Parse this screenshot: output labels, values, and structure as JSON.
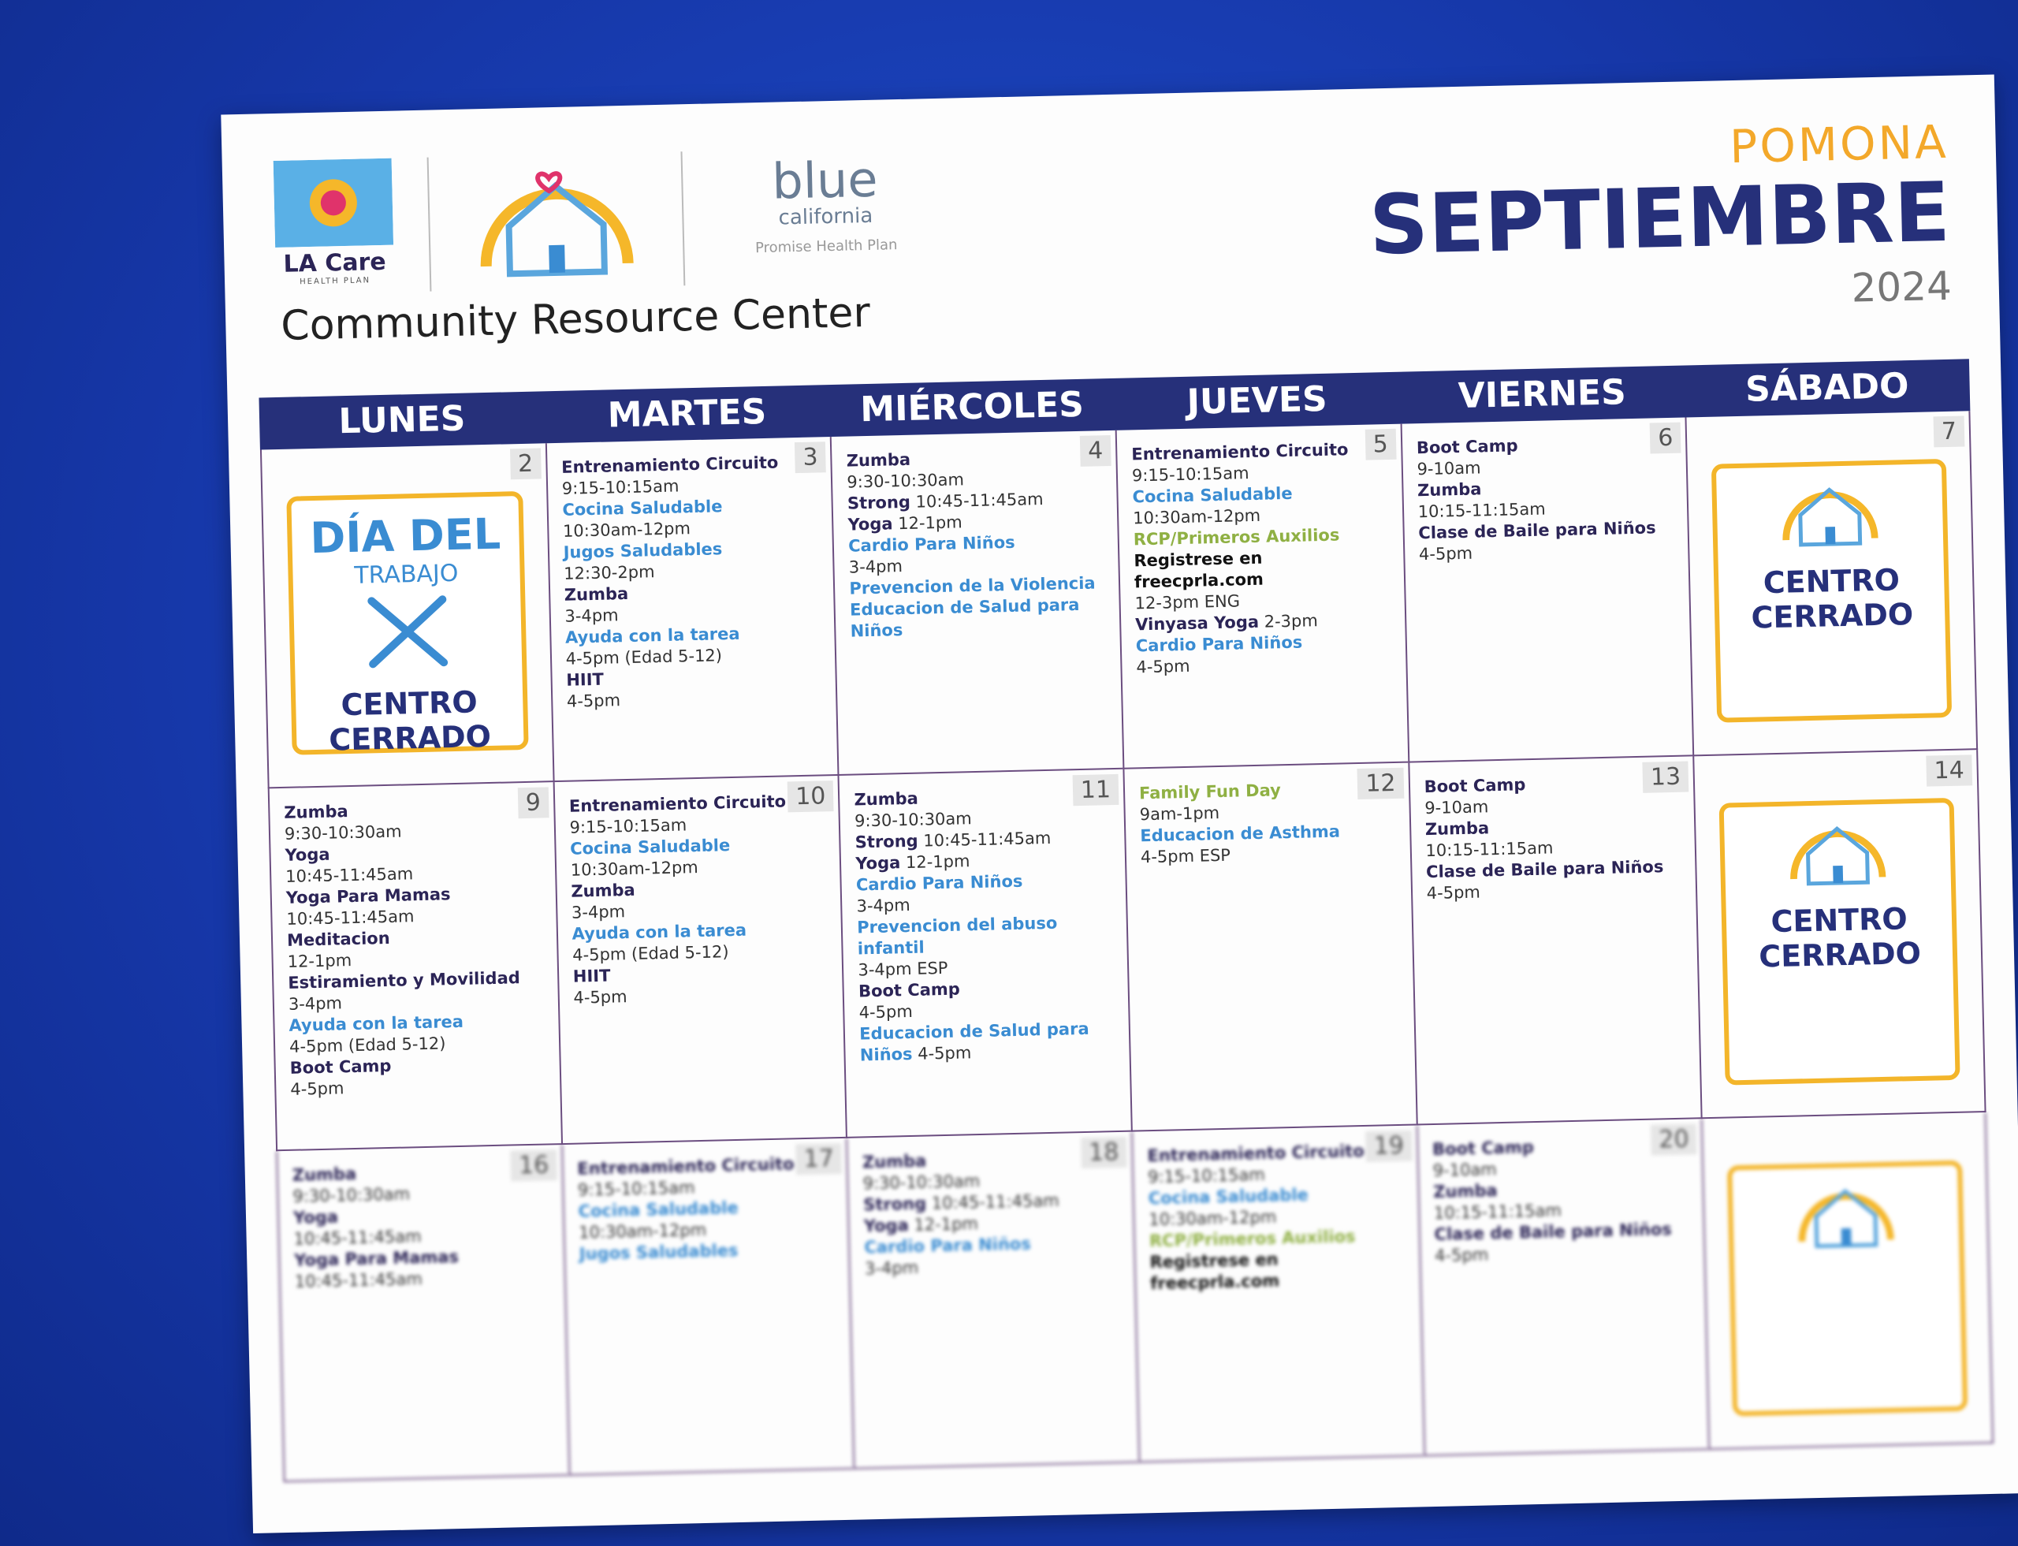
{
  "header": {
    "logo_la_care": "LA Care",
    "logo_la_care_sub": "HEALTH PLAN",
    "logo_blue": "blue",
    "logo_blue_sub": "california",
    "logo_blue_plan": "Promise Health Plan",
    "center": "Community Resource Center",
    "city": "POMONA",
    "month": "SEPTIEMBRE",
    "year": "2024"
  },
  "calendar": {
    "days": [
      "LUNES",
      "MARTES",
      "MIÉRCOLES",
      "JUEVES",
      "VIERNES",
      "SÁBADO"
    ],
    "weeks": [
      [
        {
          "day": 2,
          "closed": {
            "title": "DÍA DEL",
            "subtitle": "TRABAJO",
            "label": "CENTRO CERRADO"
          }
        },
        {
          "day": 3,
          "entries": [
            {
              "name": "Entrenamiento Circuito",
              "time": "9:15-10:15am",
              "style": "bold"
            },
            {
              "name": "Cocina Saludable",
              "time": "10:30am-12pm",
              "style": "blue"
            },
            {
              "name": "Jugos Saludables",
              "time": "12:30-2pm",
              "style": "blue"
            },
            {
              "name": "Zumba",
              "time": "3-4pm",
              "style": "bold"
            },
            {
              "name": "Ayuda con la tarea",
              "time": "4-5pm  (Edad 5-12)",
              "style": "blue"
            },
            {
              "name": "HIIT",
              "time": "4-5pm",
              "style": "bold"
            }
          ]
        },
        {
          "day": 4,
          "entries": [
            {
              "name": "Zumba",
              "time": "9:30-10:30am",
              "style": "bold"
            },
            {
              "name": "Strong",
              "time": "10:45-11:45am",
              "style": "bold",
              "inline": true
            },
            {
              "name": "Yoga",
              "time": "12-1pm",
              "style": "bold",
              "inline": true
            },
            {
              "name": "Cardio Para Niños",
              "time": "3-4pm",
              "style": "blue"
            },
            {
              "name": "Prevencion de la Violencia",
              "style": "blue"
            },
            {
              "name": "Educacion de Salud para Niños",
              "style": "blue"
            }
          ]
        },
        {
          "day": 5,
          "entries": [
            {
              "name": "Entrenamiento Circuito",
              "time": "9:15-10:15am",
              "style": "bold",
              "inline": true
            },
            {
              "name": "Cocina Saludable",
              "time": "10:30am-12pm",
              "style": "blue"
            },
            {
              "name": "RCP/Primeros Auxilios",
              "style": "green"
            },
            {
              "name": "Registrese en freecprla.com",
              "time": "12-3pm ENG",
              "style": "plain"
            },
            {
              "name": "Vinyasa Yoga",
              "time": "2-3pm",
              "style": "bold",
              "inline": true
            },
            {
              "name": "Cardio Para Niños",
              "time": "4-5pm",
              "style": "blue"
            }
          ]
        },
        {
          "day": 6,
          "entries": [
            {
              "name": "Boot Camp",
              "time": "9-10am",
              "style": "bold"
            },
            {
              "name": "Zumba",
              "time": "10:15-11:15am",
              "style": "bold"
            },
            {
              "name": "Clase de Baile para Niños",
              "time": "4-5pm",
              "style": "bold"
            }
          ]
        },
        {
          "day": 7,
          "closed": {
            "label": "CENTRO CERRADO"
          }
        }
      ],
      [
        {
          "day": 9,
          "entries": [
            {
              "name": "Zumba",
              "time": "9:30-10:30am",
              "style": "bold"
            },
            {
              "name": "Yoga",
              "time": "10:45-11:45am",
              "style": "bold"
            },
            {
              "name": "Yoga Para Mamas",
              "time": "10:45-11:45am",
              "style": "bold"
            },
            {
              "name": "Meditacion",
              "time": "12-1pm",
              "style": "bold"
            },
            {
              "name": "Estiramiento y Movilidad",
              "time": "3-4pm",
              "style": "bold"
            },
            {
              "name": "Ayuda con la tarea",
              "time": "4-5pm (Edad 5-12)",
              "style": "blue"
            },
            {
              "name": "Boot Camp",
              "time": "4-5pm",
              "style": "bold"
            }
          ]
        },
        {
          "day": 10,
          "entries": [
            {
              "name": "Entrenamiento Circuito",
              "time": "9:15-10:15am",
              "style": "bold"
            },
            {
              "name": "Cocina Saludable",
              "time": "10:30am-12pm",
              "style": "blue"
            },
            {
              "name": "Zumba",
              "time": "3-4pm",
              "style": "bold"
            },
            {
              "name": "Ayuda con la tarea",
              "time": "4-5pm (Edad 5-12)",
              "style": "blue"
            },
            {
              "name": "HIIT",
              "time": "4-5pm",
              "style": "bold"
            }
          ]
        },
        {
          "day": 11,
          "entries": [
            {
              "name": "Zumba",
              "time": "9:30-10:30am",
              "style": "bold"
            },
            {
              "name": "Strong",
              "time": "10:45-11:45am",
              "style": "bold",
              "inline": true
            },
            {
              "name": "Yoga",
              "time": "12-1pm",
              "style": "bold",
              "inline": true
            },
            {
              "name": "Cardio Para Niños",
              "time": "3-4pm",
              "style": "blue"
            },
            {
              "name": "Prevencion del abuso infantil",
              "time": "3-4pm ESP",
              "style": "blue"
            },
            {
              "name": "Boot Camp",
              "time": "4-5pm",
              "style": "bold"
            },
            {
              "name": "Educacion de Salud para Niños",
              "time": "4-5pm",
              "style": "blue",
              "inline": true
            }
          ]
        },
        {
          "day": 12,
          "entries": [
            {
              "name": "Family Fun Day",
              "time": "9am-1pm",
              "style": "green"
            },
            {
              "name": "Educacion de Asthma",
              "time": "4-5pm ESP",
              "style": "blue"
            }
          ]
        },
        {
          "day": 13,
          "entries": [
            {
              "name": "Boot Camp",
              "time": "9-10am",
              "style": "bold"
            },
            {
              "name": "Zumba",
              "time": "10:15-11:15am",
              "style": "bold"
            },
            {
              "name": "Clase de Baile para Niños",
              "time": "4-5pm",
              "style": "bold"
            }
          ]
        },
        {
          "day": 14,
          "closed": {
            "label": "CENTRO CERRADO"
          }
        }
      ],
      [
        {
          "day": 16,
          "entries": [
            {
              "name": "Zumba",
              "time": "9:30-10:30am",
              "style": "bold"
            },
            {
              "name": "Yoga",
              "time": "10:45-11:45am",
              "style": "bold"
            },
            {
              "name": "Yoga Para Mamas",
              "time": "10:45-11:45am",
              "style": "bold"
            }
          ]
        },
        {
          "day": 17,
          "entries": [
            {
              "name": "Entrenamiento Circuito",
              "time": "9:15-10:15am",
              "style": "bold"
            },
            {
              "name": "Cocina Saludable",
              "time": "10:30am-12pm",
              "style": "blue"
            },
            {
              "name": "Jugos Saludables",
              "style": "blue"
            }
          ]
        },
        {
          "day": 18,
          "entries": [
            {
              "name": "Zumba",
              "time": "9:30-10:30am",
              "style": "bold"
            },
            {
              "name": "Strong",
              "time": "10:45-11:45am",
              "style": "bold",
              "inline": true
            },
            {
              "name": "Yoga",
              "time": "12-1pm",
              "style": "bold",
              "inline": true
            },
            {
              "name": "Cardio Para Niños",
              "time": "3-4pm",
              "style": "blue"
            }
          ]
        },
        {
          "day": 19,
          "entries": [
            {
              "name": "Entrenamiento Circuito",
              "time": "9:15-10:15am",
              "style": "bold"
            },
            {
              "name": "Cocina Saludable",
              "time": "10:30am-12pm",
              "style": "blue"
            },
            {
              "name": "RCP/Primeros Auxilios",
              "style": "green"
            },
            {
              "name": "Registrese en freecprla.com",
              "style": "plain"
            }
          ]
        },
        {
          "day": 20,
          "entries": [
            {
              "name": "Boot Camp",
              "time": "9-10am",
              "style": "bold"
            },
            {
              "name": "Zumba",
              "time": "10:15-11:15am",
              "style": "bold"
            },
            {
              "name": "Clase de Baile para Niños",
              "time": "4-5pm",
              "style": "bold"
            }
          ]
        },
        {
          "closed": true
        }
      ]
    ]
  }
}
